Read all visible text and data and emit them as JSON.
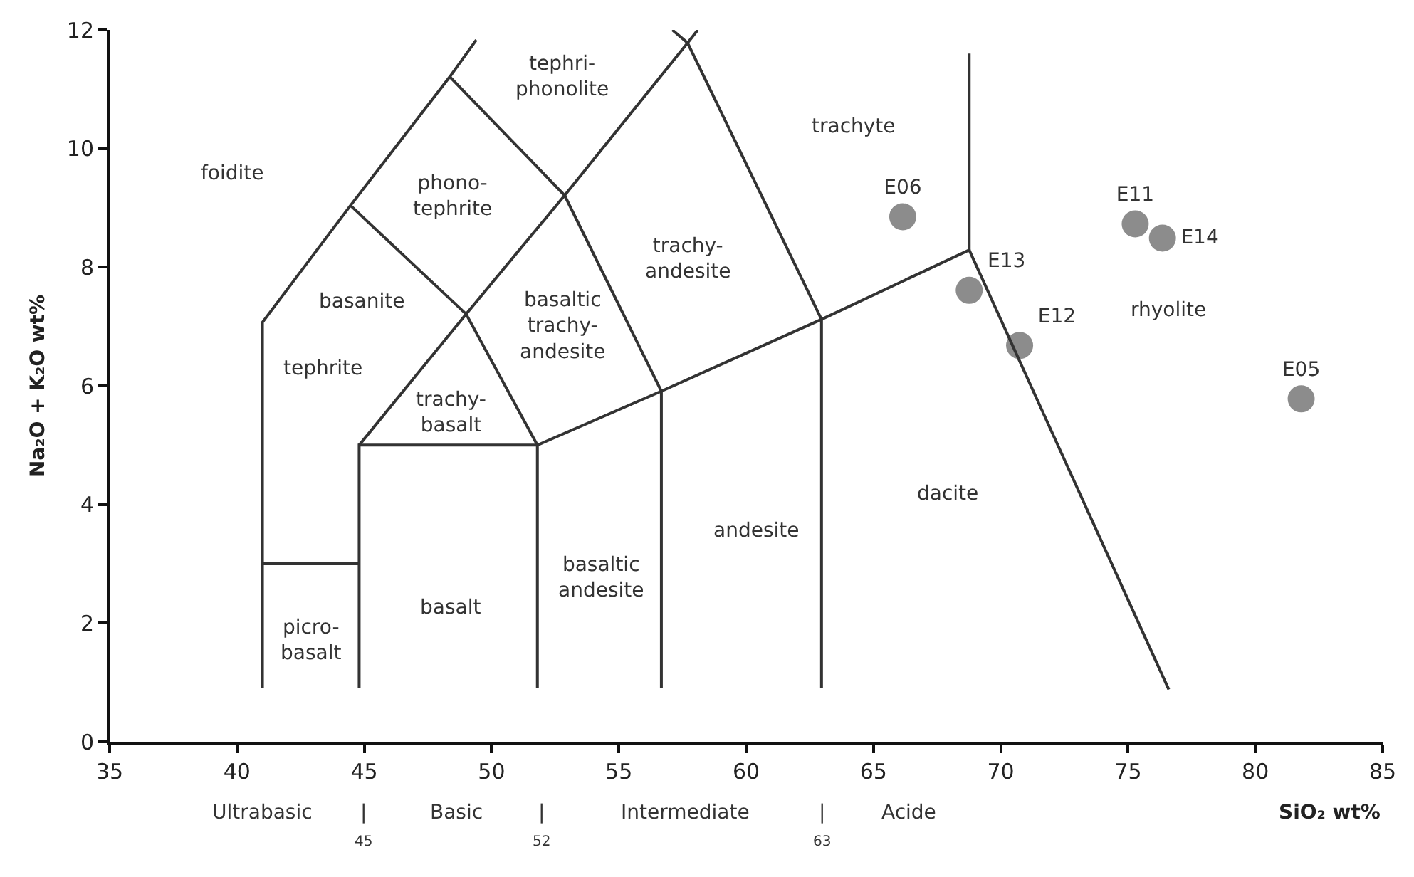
{
  "chart_data": {
    "type": "scatter",
    "xlabel": "SiO₂ wt%",
    "ylabel": "Na₂O + K₂O wt%",
    "xlim": [
      35,
      85
    ],
    "xticks": [
      35,
      40,
      45,
      50,
      55,
      60,
      65,
      70,
      75,
      80,
      85
    ],
    "ylim": [
      0,
      12
    ],
    "yticks": [
      0,
      2,
      4,
      6,
      8,
      10,
      12
    ],
    "series": [
      {
        "color": "#8c8c8c",
        "marker": "circle",
        "x": [
          66.15,
          68.76,
          70.74,
          75.28,
          76.35,
          81.8
        ],
        "values": [
          8.85,
          7.61,
          6.68,
          8.73,
          8.49,
          5.78
        ],
        "value_labels": [
          "E06",
          "E13",
          "E12",
          "E11",
          "E14",
          "E05"
        ]
      },
      {
        "type": "line",
        "color": "#333333",
        "x": [
          41,
          41,
          44.46,
          48.36,
          49.4
        ],
        "values": [
          0.9,
          7.07,
          9.04,
          11.21,
          11.83
        ]
      },
      {
        "type": "line",
        "color": "#333333",
        "x": [
          41,
          44.8
        ],
        "values": [
          3,
          3
        ]
      },
      {
        "type": "line",
        "color": "#333333",
        "x": [
          44.8,
          44.8,
          51.8,
          56.67,
          62.96,
          68.76,
          76.6
        ],
        "values": [
          0.9,
          5,
          5,
          5.91,
          7.12,
          8.29,
          0.88
        ]
      },
      {
        "type": "line",
        "color": "#333333",
        "x": [
          44.8,
          49.0,
          52.87,
          57.7,
          58.1
        ],
        "values": [
          5,
          7.21,
          9.21,
          11.78,
          12
        ]
      },
      {
        "type": "line",
        "color": "#333333",
        "x": [
          57.1,
          57.7,
          62.96,
          62.96
        ],
        "values": [
          12,
          11.78,
          7.12,
          0.9
        ]
      },
      {
        "type": "line",
        "color": "#333333",
        "x": [
          44.46,
          49.0,
          51.8,
          51.8
        ],
        "values": [
          9.04,
          7.21,
          5,
          0.9
        ]
      },
      {
        "type": "line",
        "color": "#333333",
        "x": [
          48.36,
          52.87,
          56.67,
          56.67
        ],
        "values": [
          11.21,
          9.21,
          5.91,
          0.9
        ]
      },
      {
        "type": "line",
        "color": "#333333",
        "x": [
          68.76,
          68.76
        ],
        "values": [
          8.29,
          11.6
        ]
      }
    ],
    "annotations": [
      "foidite",
      "tephri-\nphonolite",
      "phono-\ntephrite",
      "basanite",
      "tephrite",
      "trachy-\nbasalt",
      "basaltic\ntrachy-\nandesite",
      "trachy-\nandesite",
      "picro-\nbasalt",
      "basalt",
      "basaltic\nandesite",
      "andesite",
      "trachyte",
      "dacite",
      "rhyolite",
      "Ultrabasic",
      "|",
      "45",
      "Basic",
      "|",
      "52",
      "Intermediate",
      "|",
      "63",
      "Acide"
    ]
  }
}
